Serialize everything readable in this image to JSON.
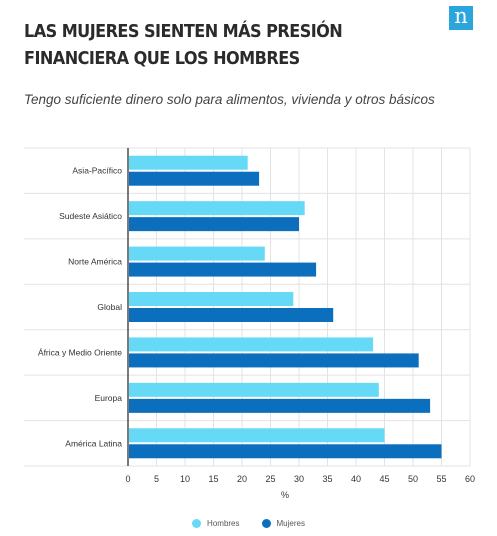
{
  "header": {
    "title": "LAS MUJERES SIENTEN MÁS PRESIÓN FINANCIERA QUE LOS HOMBRES",
    "subtitle": "Tengo suficiente dinero solo para alimentos, vivienda y otros básicos",
    "logo_text": "n",
    "logo_color": "#2aa6dd"
  },
  "chart_data": {
    "type": "bar",
    "orientation": "horizontal",
    "title": "LAS MUJERES SIENTEN MÁS PRESIÓN FINANCIERA QUE LOS HOMBRES",
    "subtitle": "Tengo suficiente dinero solo para alimentos, vivienda y otros básicos",
    "xlabel": "%",
    "ylabel": "",
    "xlim": [
      0,
      60
    ],
    "x_ticks": [
      "0",
      "5",
      "10",
      "15",
      "20",
      "25",
      "30",
      "35",
      "40",
      "45",
      "50",
      "55",
      "60"
    ],
    "grid": true,
    "legend_position": "bottom",
    "categories": [
      "Asia-Pacífico",
      "Sudeste Asiático",
      "Norte América",
      "Global",
      "África y Medio Oriente",
      "Europa",
      "América Latina"
    ],
    "series": [
      {
        "name": "Hombres",
        "color": "#66d9f7",
        "values": [
          21,
          31,
          24,
          29,
          43,
          44,
          45
        ]
      },
      {
        "name": "Mujeres",
        "color": "#0b6fbd",
        "values": [
          23,
          30,
          33,
          36,
          51,
          53,
          55
        ]
      }
    ]
  }
}
